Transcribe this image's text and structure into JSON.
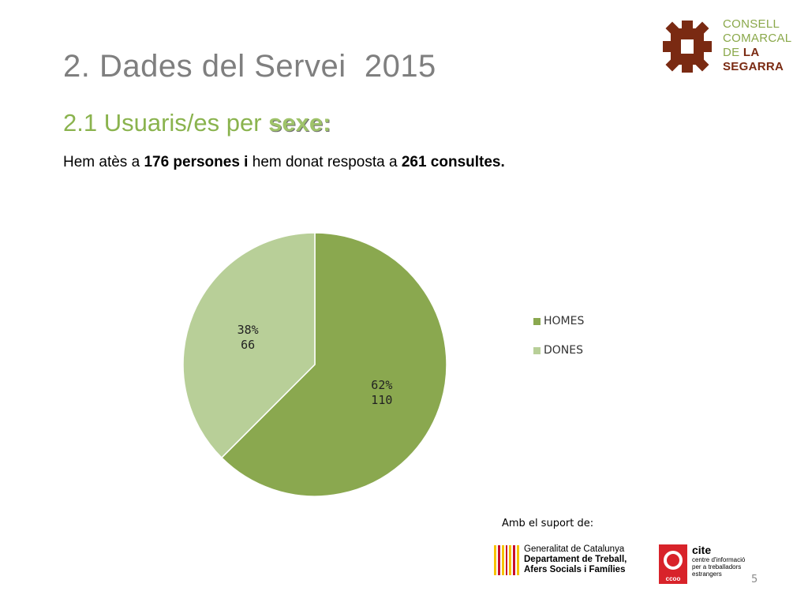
{
  "header": {
    "title_num": "2.",
    "title_text": "Dades del Servei  2015",
    "subtitle_prefix": "2.1 Usuaris/es per ",
    "subtitle_bold": "sexe:",
    "intro_p1": "Hem atès a ",
    "intro_b1": "176 persones i",
    "intro_p2": " hem donat resposta a ",
    "intro_b2": "261 consultes."
  },
  "logo_council": {
    "line1": "CONSELL",
    "line2": "COMARCAL",
    "line3_a": "DE ",
    "line3_b": "LA",
    "line4": "SEGARRA"
  },
  "chart_data": {
    "type": "pie",
    "categories": [
      "HOMES",
      "DONES"
    ],
    "values": [
      110,
      66
    ],
    "percent_labels": [
      "62%",
      "38%"
    ],
    "value_labels": [
      "110",
      "66"
    ],
    "colors": [
      "#8aa84f",
      "#b8cf98"
    ],
    "legend_position": "right",
    "title": ""
  },
  "footer": {
    "support_label": "Amb el suport de:",
    "gen_line1": "Generalitat de Catalunya",
    "gen_line2": "Departament de Treball,",
    "gen_line3": "Afers Socials i Famílies",
    "cite_title": "cite",
    "cite_sub": "centre d'informació per a treballadors estrangers",
    "cite_ccoo": "ccoo",
    "page_number": "5"
  }
}
